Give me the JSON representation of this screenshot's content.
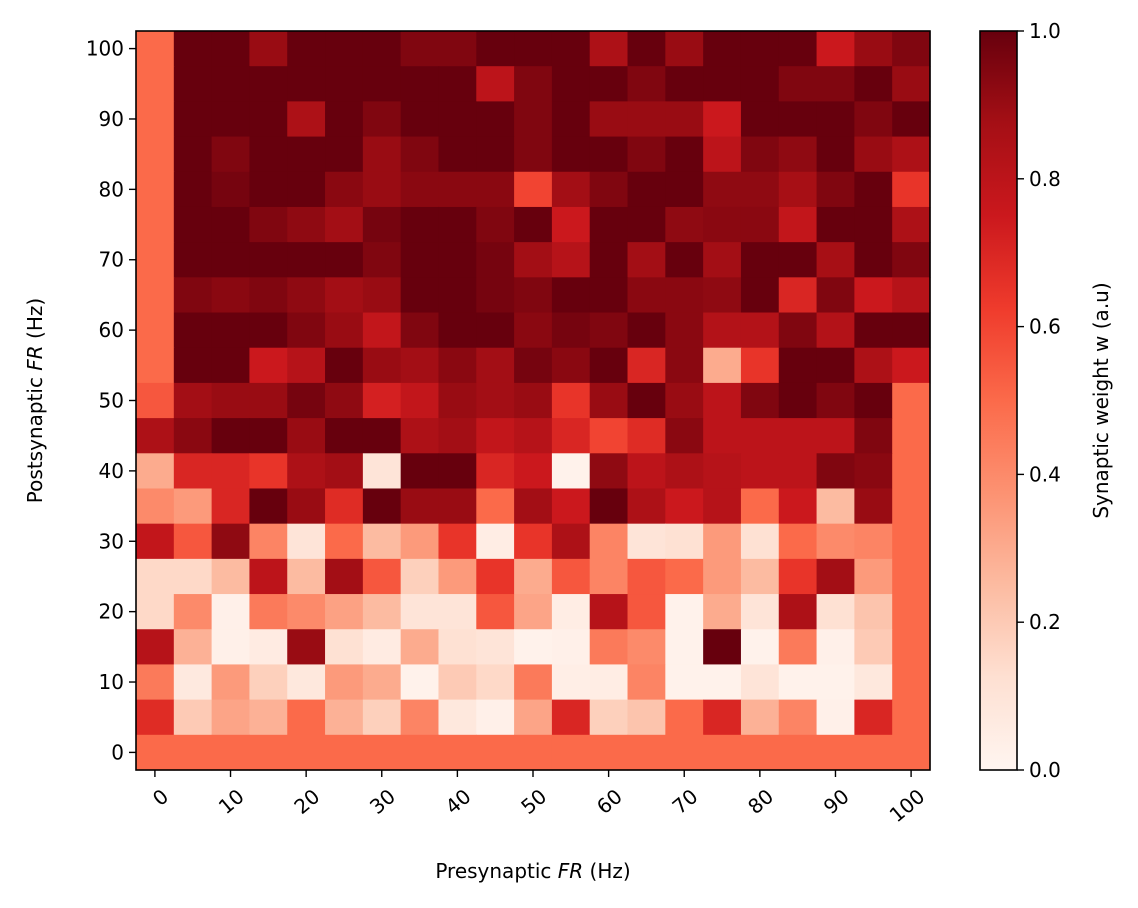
{
  "chart_data": {
    "type": "heatmap",
    "xlabel_prefix": "Presynaptic ",
    "xlabel_italic": "FR",
    "xlabel_suffix": " (Hz)",
    "ylabel_prefix": "Postsynaptic ",
    "ylabel_italic": "FR",
    "ylabel_suffix": " (Hz)",
    "x_ticks": [
      "0",
      "10",
      "20",
      "30",
      "40",
      "50",
      "60",
      "70",
      "80",
      "90",
      "100"
    ],
    "y_ticks": [
      "0",
      "10",
      "20",
      "30",
      "40",
      "50",
      "60",
      "70",
      "80",
      "90",
      "100"
    ],
    "x_tick_values": [
      0,
      10,
      20,
      30,
      40,
      50,
      60,
      70,
      80,
      90,
      100
    ],
    "y_tick_values": [
      0,
      10,
      20,
      30,
      40,
      50,
      60,
      70,
      80,
      90,
      100
    ],
    "x_cells": [
      0,
      5,
      10,
      15,
      20,
      25,
      30,
      35,
      40,
      45,
      50,
      55,
      60,
      65,
      70,
      75,
      80,
      85,
      90,
      95,
      100
    ],
    "y_cells": [
      0,
      5,
      10,
      15,
      20,
      25,
      30,
      35,
      40,
      45,
      50,
      55,
      60,
      65,
      70,
      75,
      80,
      85,
      90,
      95,
      100
    ],
    "xlim": [
      -2.5,
      102.5
    ],
    "ylim": [
      -2.5,
      102.5
    ],
    "colorbar": {
      "label": "Synaptic weight w (a.u)",
      "range": [
        0,
        1
      ],
      "ticks": [
        "0.0",
        "0.2",
        "0.4",
        "0.6",
        "0.8",
        "1.0"
      ],
      "tick_values": [
        0,
        0.2,
        0.4,
        0.6,
        0.8,
        1.0
      ],
      "colormap": "Reds"
    },
    "values_rows_top_to_bottom": [
      [
        0.5,
        1.0,
        1.0,
        0.9,
        1.0,
        1.0,
        1.0,
        0.95,
        0.95,
        1.0,
        1.0,
        1.0,
        0.85,
        1.0,
        0.9,
        1.0,
        1.0,
        1.0,
        0.75,
        0.9,
        0.95
      ],
      [
        0.5,
        1.0,
        1.0,
        1.0,
        1.0,
        1.0,
        1.0,
        1.0,
        1.0,
        0.8,
        0.95,
        1.0,
        1.0,
        0.95,
        1.0,
        1.0,
        1.0,
        0.95,
        0.95,
        1.0,
        0.9
      ],
      [
        0.5,
        1.0,
        1.0,
        1.0,
        0.85,
        1.0,
        0.95,
        1.0,
        1.0,
        1.0,
        0.95,
        1.0,
        0.9,
        0.9,
        0.9,
        0.75,
        1.0,
        1.0,
        1.0,
        0.95,
        1.0
      ],
      [
        0.5,
        1.0,
        0.95,
        1.0,
        1.0,
        1.0,
        0.9,
        0.95,
        1.0,
        1.0,
        0.95,
        1.0,
        1.0,
        0.95,
        1.0,
        0.8,
        0.95,
        0.92,
        1.0,
        0.9,
        0.85
      ],
      [
        0.5,
        1.0,
        0.97,
        1.0,
        1.0,
        0.93,
        0.9,
        0.93,
        0.93,
        0.93,
        0.6,
        0.88,
        0.95,
        1.0,
        1.0,
        0.92,
        0.92,
        0.87,
        0.95,
        1.0,
        0.65
      ],
      [
        0.5,
        1.0,
        1.0,
        0.95,
        0.92,
        0.88,
        0.97,
        1.0,
        1.0,
        0.95,
        1.0,
        0.75,
        1.0,
        1.0,
        0.92,
        0.93,
        0.93,
        0.78,
        1.0,
        1.0,
        0.85
      ],
      [
        0.5,
        1.0,
        1.0,
        1.0,
        1.0,
        1.0,
        0.95,
        1.0,
        1.0,
        0.97,
        0.88,
        0.82,
        1.0,
        0.88,
        1.0,
        0.88,
        1.0,
        1.0,
        0.87,
        1.0,
        0.95
      ],
      [
        0.5,
        0.95,
        0.93,
        0.95,
        0.92,
        0.88,
        0.9,
        1.0,
        1.0,
        0.97,
        0.95,
        1.0,
        1.0,
        0.93,
        0.93,
        0.92,
        1.0,
        0.7,
        0.95,
        0.75,
        0.82
      ],
      [
        0.5,
        1.0,
        1.0,
        1.0,
        0.95,
        0.9,
        0.78,
        0.95,
        1.0,
        1.0,
        0.93,
        0.97,
        0.95,
        1.0,
        0.93,
        0.83,
        0.83,
        0.95,
        0.83,
        1.0,
        1.0
      ],
      [
        0.5,
        1.0,
        1.0,
        0.75,
        0.82,
        1.0,
        0.9,
        0.88,
        0.93,
        0.88,
        0.97,
        0.93,
        1.0,
        0.7,
        0.93,
        0.3,
        0.65,
        1.0,
        1.0,
        0.85,
        0.75
      ],
      [
        0.55,
        0.88,
        0.9,
        0.9,
        0.97,
        0.92,
        0.72,
        0.78,
        0.9,
        0.88,
        0.9,
        0.65,
        0.9,
        1.0,
        0.9,
        0.8,
        0.95,
        1.0,
        0.95,
        1.0,
        0.5
      ],
      [
        0.85,
        0.93,
        1.0,
        1.0,
        0.9,
        1.0,
        1.0,
        0.85,
        0.88,
        0.78,
        0.82,
        0.7,
        0.6,
        0.68,
        0.93,
        0.8,
        0.8,
        0.8,
        0.8,
        0.95,
        0.5
      ],
      [
        0.3,
        0.7,
        0.7,
        0.65,
        0.85,
        0.88,
        0.1,
        1.0,
        1.0,
        0.7,
        0.75,
        0.02,
        0.92,
        0.8,
        0.85,
        0.82,
        0.8,
        0.8,
        0.95,
        0.93,
        0.5
      ],
      [
        0.4,
        0.35,
        0.7,
        1.0,
        0.9,
        0.68,
        1.0,
        0.9,
        0.9,
        0.5,
        0.88,
        0.75,
        1.0,
        0.85,
        0.75,
        0.82,
        0.5,
        0.75,
        0.25,
        0.9,
        0.5
      ],
      [
        0.78,
        0.55,
        0.92,
        0.42,
        0.1,
        0.5,
        0.25,
        0.35,
        0.65,
        0.05,
        0.65,
        0.85,
        0.42,
        0.1,
        0.12,
        0.35,
        0.12,
        0.5,
        0.4,
        0.42,
        0.5
      ],
      [
        0.15,
        0.15,
        0.25,
        0.8,
        0.25,
        0.88,
        0.55,
        0.18,
        0.35,
        0.65,
        0.3,
        0.55,
        0.42,
        0.55,
        0.5,
        0.35,
        0.25,
        0.65,
        0.88,
        0.35,
        0.5
      ],
      [
        0.15,
        0.4,
        0.03,
        0.45,
        0.4,
        0.33,
        0.25,
        0.1,
        0.1,
        0.55,
        0.32,
        0.05,
        0.82,
        0.55,
        0.02,
        0.3,
        0.1,
        0.85,
        0.12,
        0.22,
        0.5
      ],
      [
        0.82,
        0.28,
        0.03,
        0.06,
        0.9,
        0.12,
        0.06,
        0.3,
        0.12,
        0.1,
        0.02,
        0.03,
        0.45,
        0.4,
        0.02,
        1.0,
        0.02,
        0.45,
        0.03,
        0.2,
        0.5
      ],
      [
        0.45,
        0.07,
        0.35,
        0.18,
        0.08,
        0.35,
        0.3,
        0.02,
        0.2,
        0.15,
        0.45,
        0.04,
        0.05,
        0.42,
        0.02,
        0.02,
        0.1,
        0.02,
        0.02,
        0.08,
        0.5
      ],
      [
        0.68,
        0.2,
        0.32,
        0.28,
        0.5,
        0.28,
        0.18,
        0.42,
        0.08,
        0.03,
        0.32,
        0.7,
        0.18,
        0.22,
        0.5,
        0.7,
        0.28,
        0.42,
        0.03,
        0.7,
        0.5
      ],
      [
        0.5,
        0.5,
        0.5,
        0.5,
        0.5,
        0.5,
        0.5,
        0.5,
        0.5,
        0.5,
        0.5,
        0.5,
        0.5,
        0.5,
        0.5,
        0.5,
        0.5,
        0.5,
        0.5,
        0.5,
        0.5
      ]
    ]
  }
}
